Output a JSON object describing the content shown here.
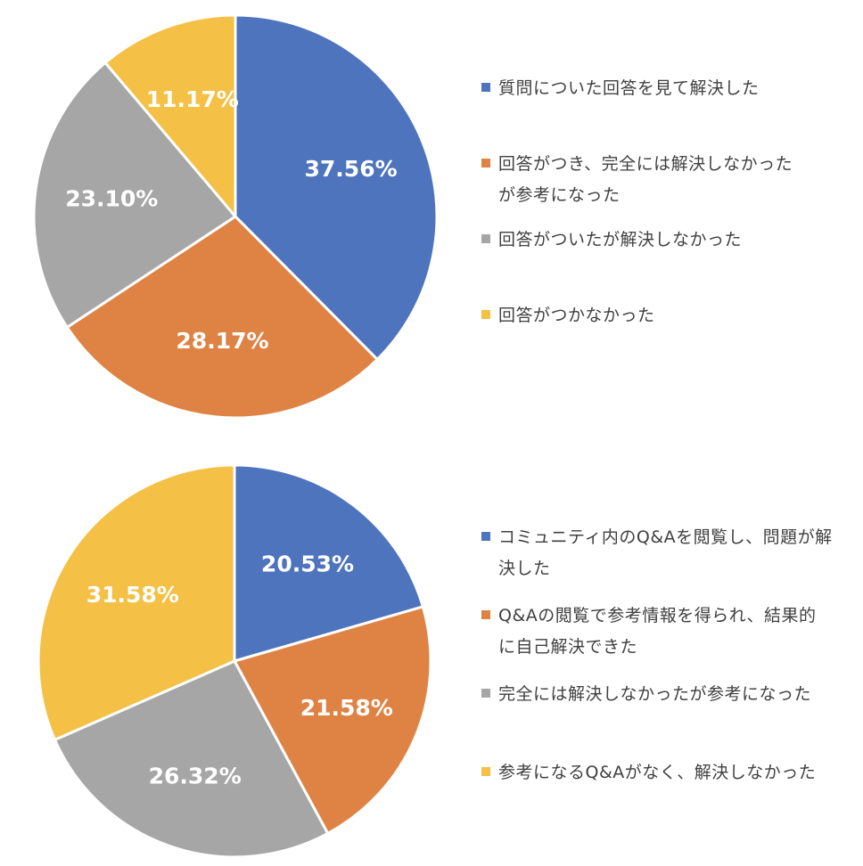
{
  "chart_data": [
    {
      "type": "pie",
      "slices": [
        {
          "label": "質問についた回答を見て解決した",
          "value": 37.56,
          "text": "37.56%",
          "color": "#4e74be"
        },
        {
          "label": "回答がつき、完全には解決しなかったが参考になった",
          "value": 28.17,
          "text": "28.17%",
          "color": "#df8345"
        },
        {
          "label": "回答がついたが解決しなかった",
          "value": 23.1,
          "text": "23.10%",
          "color": "#a6a6a6"
        },
        {
          "label": "回答がつかなかった",
          "value": 11.17,
          "text": "11.17%",
          "color": "#f4c045"
        }
      ]
    },
    {
      "type": "pie",
      "slices": [
        {
          "label": "コミュニティ内のQ&Aを閲覧し、問題が解決した",
          "value": 20.53,
          "text": "20.53%",
          "color": "#4e74be"
        },
        {
          "label": "Q&Aの閲覧で参考情報を得られ、結果的に自己解決できた",
          "value": 21.58,
          "text": "21.58%",
          "color": "#df8345"
        },
        {
          "label": "完全には解決しなかったが参考になった",
          "value": 26.32,
          "text": "26.32%",
          "color": "#a6a6a6"
        },
        {
          "label": "参考になるQ&Aがなく、解決しなかった",
          "value": 31.58,
          "text": "31.58%",
          "color": "#f4c045"
        }
      ]
    }
  ]
}
